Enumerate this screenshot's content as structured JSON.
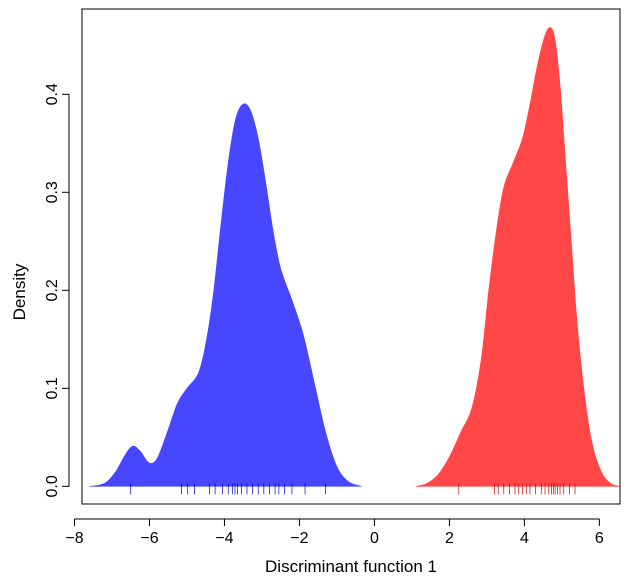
{
  "chart_data": {
    "type": "area",
    "title": "",
    "xlabel": "Discriminant function 1",
    "ylabel": "Density",
    "xlim": [
      -7.8,
      6.55
    ],
    "ylim": [
      -0.018,
      0.487
    ],
    "x_ticks": [
      -8,
      -6,
      -4,
      -2,
      0,
      2,
      4,
      6
    ],
    "x_tick_labels": [
      "−8",
      "−6",
      "−4",
      "−2",
      "0",
      "2",
      "4",
      "6"
    ],
    "y_ticks": [
      0.0,
      0.1,
      0.2,
      0.3,
      0.4
    ],
    "y_tick_labels": [
      "0.0",
      "0.1",
      "0.2",
      "0.3",
      "0.4"
    ],
    "grid": false,
    "legend": "none",
    "series": [
      {
        "color": "#4747ff",
        "rug_color": "#0000cc",
        "density": [
          [
            -7.6,
            0.0
          ],
          [
            -7.2,
            0.003
          ],
          [
            -6.9,
            0.015
          ],
          [
            -6.65,
            0.032
          ],
          [
            -6.45,
            0.041
          ],
          [
            -6.25,
            0.036
          ],
          [
            -6.05,
            0.025
          ],
          [
            -5.9,
            0.024
          ],
          [
            -5.75,
            0.032
          ],
          [
            -5.5,
            0.058
          ],
          [
            -5.25,
            0.085
          ],
          [
            -5.0,
            0.1
          ],
          [
            -4.7,
            0.115
          ],
          [
            -4.5,
            0.145
          ],
          [
            -4.3,
            0.195
          ],
          [
            -4.1,
            0.265
          ],
          [
            -3.9,
            0.33
          ],
          [
            -3.7,
            0.375
          ],
          [
            -3.5,
            0.39
          ],
          [
            -3.3,
            0.383
          ],
          [
            -3.1,
            0.355
          ],
          [
            -2.9,
            0.31
          ],
          [
            -2.7,
            0.26
          ],
          [
            -2.5,
            0.222
          ],
          [
            -2.2,
            0.19
          ],
          [
            -1.9,
            0.155
          ],
          [
            -1.6,
            0.105
          ],
          [
            -1.3,
            0.055
          ],
          [
            -1.0,
            0.02
          ],
          [
            -0.7,
            0.005
          ],
          [
            -0.35,
            0.0
          ]
        ],
        "rug": [
          -6.5,
          -5.15,
          -4.98,
          -4.8,
          -4.4,
          -4.25,
          -4.05,
          -3.9,
          -3.78,
          -3.72,
          -3.65,
          -3.55,
          -3.4,
          -3.25,
          -3.1,
          -2.95,
          -2.8,
          -2.65,
          -2.55,
          -2.4,
          -2.2,
          -1.85,
          -1.3
        ]
      },
      {
        "color": "#ff4747",
        "rug_color": "#cc0000",
        "density": [
          [
            1.1,
            0.0
          ],
          [
            1.4,
            0.003
          ],
          [
            1.7,
            0.012
          ],
          [
            2.0,
            0.03
          ],
          [
            2.3,
            0.055
          ],
          [
            2.6,
            0.08
          ],
          [
            2.85,
            0.13
          ],
          [
            3.05,
            0.2
          ],
          [
            3.25,
            0.26
          ],
          [
            3.45,
            0.305
          ],
          [
            3.7,
            0.33
          ],
          [
            3.95,
            0.355
          ],
          [
            4.15,
            0.39
          ],
          [
            4.35,
            0.43
          ],
          [
            4.55,
            0.46
          ],
          [
            4.7,
            0.468
          ],
          [
            4.82,
            0.455
          ],
          [
            4.95,
            0.41
          ],
          [
            5.1,
            0.33
          ],
          [
            5.25,
            0.25
          ],
          [
            5.4,
            0.17
          ],
          [
            5.6,
            0.095
          ],
          [
            5.8,
            0.045
          ],
          [
            6.05,
            0.015
          ],
          [
            6.3,
            0.003
          ],
          [
            6.55,
            0.0
          ]
        ],
        "rug": [
          2.25,
          3.2,
          3.3,
          3.45,
          3.6,
          3.75,
          3.85,
          3.95,
          4.05,
          4.15,
          4.3,
          4.45,
          4.55,
          4.65,
          4.72,
          4.78,
          4.82,
          4.88,
          4.95,
          5.05,
          5.2,
          5.35
        ]
      }
    ]
  }
}
